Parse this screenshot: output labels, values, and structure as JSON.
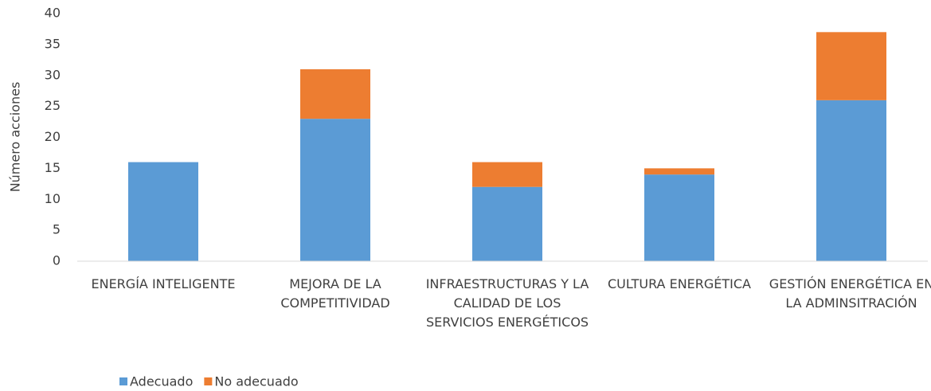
{
  "chart_data": {
    "type": "stacked_bar",
    "y_label": "Número acciones",
    "categories": [
      "ENERGÍA INTELIGENTE",
      "MEJORA DE LA COMPETITIVIDAD",
      "INFRAESTRUCTURAS Y LA CALIDAD DE LOS SERVICIOS ENERGÉTICOS",
      "CULTURA ENERGÉTICA",
      "GESTIÓN ENERGÉTICA EN LA ADMINSITRACIÓN"
    ],
    "series": [
      {
        "name": "Adecuado",
        "color": "#5b9bd5",
        "values": [
          16,
          23,
          12,
          14,
          26
        ]
      },
      {
        "name": "No adecuado",
        "color": "#ed7d31",
        "values": [
          0,
          8,
          4,
          1,
          11
        ]
      }
    ],
    "ylim": [
      0,
      40
    ],
    "yticks": [
      0,
      5,
      10,
      15,
      20,
      25,
      30,
      35,
      40
    ],
    "grid": false,
    "legend": "bottom-left"
  }
}
